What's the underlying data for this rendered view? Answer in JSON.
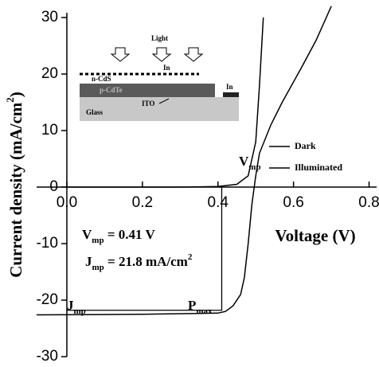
{
  "chart_data": {
    "type": "line",
    "x_label": "Voltage (V)",
    "y_label": {
      "main": "Current density (mA/cm",
      "sup": "2",
      "end": ")"
    },
    "xlim": [
      -0.08,
      0.82
    ],
    "ylim": [
      -30,
      30
    ],
    "xticks": [
      {
        "value": 0,
        "label": "0.0"
      },
      0.2,
      0.4,
      0.6,
      0.8
    ],
    "yticks": [
      -30,
      -20,
      -10,
      0,
      10,
      20,
      30
    ],
    "series": [
      {
        "name": "Dark",
        "color": "#000000",
        "x": [
          0.0,
          0.3,
          0.4,
          0.45,
          0.48,
          0.5,
          0.51,
          0.52
        ],
        "values": [
          0,
          0,
          0.1,
          0.5,
          2,
          8,
          18,
          30
        ]
      },
      {
        "name": "Illuminated",
        "color": "#000000",
        "x": [
          -0.08,
          0.2,
          0.4,
          0.42,
          0.44,
          0.46,
          0.47,
          0.48,
          0.49,
          0.5,
          0.51,
          0.54,
          0.57,
          0.62,
          0.66,
          0.7
        ],
        "values": [
          -22.6,
          -22.5,
          -22.3,
          -22,
          -21,
          -19,
          -16,
          -10,
          -3,
          2,
          6,
          11,
          15,
          21,
          26,
          32
        ]
      }
    ],
    "max_power_point": {
      "x": 0.41,
      "y": -21.8
    },
    "annotations": {
      "vmp_value": {
        "main": "V",
        "sub": "mp",
        "rest": " = 0.41 V"
      },
      "jmp_value": {
        "main": "J",
        "sub": "mp",
        "rest": " = 21.8 mA/cm",
        "sup": "2"
      },
      "jmp": {
        "main": "J",
        "sub": "mp"
      },
      "pmax": {
        "main": "P",
        "sub": "max"
      },
      "vmp": {
        "main": "V",
        "sub": "mp"
      }
    },
    "inset": {
      "light": "Light",
      "in_top": "In",
      "n_cds": "n-CdS",
      "p_cdte": "p-CdTe",
      "in_right": "In",
      "ito": "ITO",
      "glass": "Glass"
    }
  }
}
